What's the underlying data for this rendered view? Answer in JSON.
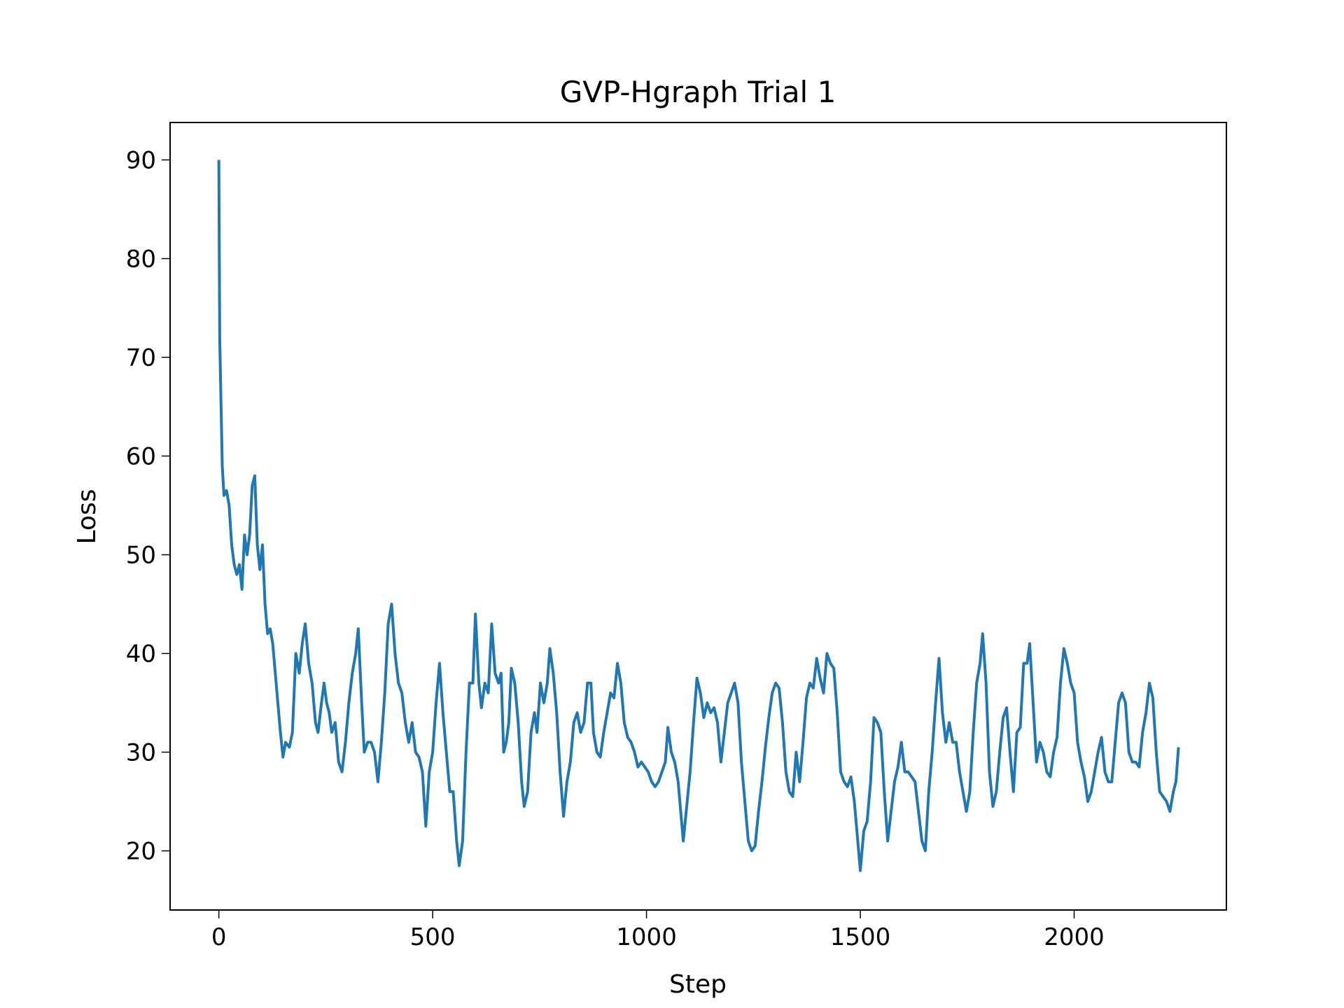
{
  "chart_data": {
    "type": "line",
    "title": "GVP-Hgraph Trial 1",
    "xlabel": "Step",
    "ylabel": "Loss",
    "color": "#1f77b4",
    "xlim": [
      -114,
      2356
    ],
    "ylim": [
      14.01,
      93.79
    ],
    "xticks": [
      0,
      500,
      1000,
      1500,
      2000
    ],
    "yticks": [
      20,
      30,
      40,
      50,
      60,
      70,
      80,
      90
    ],
    "x": [
      0,
      2,
      8,
      12,
      18,
      24,
      30,
      36,
      42,
      48,
      54,
      60,
      66,
      72,
      78,
      84,
      90,
      96,
      102,
      108,
      114,
      120,
      126,
      132,
      138,
      144,
      150,
      156,
      165,
      172,
      180,
      188,
      195,
      202,
      210,
      218,
      226,
      232,
      240,
      246,
      252,
      258,
      264,
      272,
      280,
      288,
      296,
      304,
      312,
      320,
      326,
      334,
      340,
      348,
      356,
      364,
      372,
      380,
      388,
      396,
      404,
      412,
      420,
      428,
      436,
      444,
      452,
      460,
      468,
      476,
      484,
      492,
      500,
      508,
      516,
      524,
      532,
      540,
      548,
      556,
      562,
      570,
      578,
      586,
      594,
      600,
      608,
      614,
      622,
      630,
      638,
      646,
      654,
      660,
      666,
      672,
      678,
      684,
      692,
      700,
      708,
      714,
      722,
      730,
      738,
      744,
      752,
      760,
      768,
      774,
      782,
      790,
      798,
      806,
      814,
      822,
      830,
      838,
      846,
      854,
      862,
      870,
      876,
      884,
      892,
      900,
      908,
      916,
      924,
      932,
      940,
      948,
      956,
      964,
      972,
      980,
      988,
      996,
      1004,
      1012,
      1020,
      1028,
      1036,
      1044,
      1050,
      1058,
      1066,
      1074,
      1080,
      1086,
      1094,
      1102,
      1110,
      1118,
      1126,
      1134,
      1142,
      1150,
      1158,
      1166,
      1174,
      1182,
      1190,
      1198,
      1206,
      1214,
      1222,
      1230,
      1238,
      1246,
      1254,
      1262,
      1270,
      1278,
      1286,
      1294,
      1302,
      1310,
      1318,
      1326,
      1334,
      1342,
      1350,
      1358,
      1366,
      1374,
      1382,
      1390,
      1398,
      1406,
      1414,
      1422,
      1430,
      1438,
      1446,
      1454,
      1462,
      1470,
      1478,
      1486,
      1494,
      1500,
      1508,
      1516,
      1524,
      1532,
      1540,
      1548,
      1556,
      1564,
      1572,
      1580,
      1588,
      1596,
      1604,
      1612,
      1620,
      1628,
      1636,
      1644,
      1652,
      1660,
      1668,
      1676,
      1684,
      1692,
      1700,
      1708,
      1716,
      1724,
      1732,
      1740,
      1748,
      1756,
      1764,
      1772,
      1780,
      1786,
      1794,
      1802,
      1810,
      1818,
      1826,
      1834,
      1842,
      1850,
      1858,
      1866,
      1874,
      1882,
      1890,
      1896,
      1904,
      1912,
      1920,
      1928,
      1936,
      1944,
      1952,
      1960,
      1968,
      1976,
      1984,
      1992,
      2000,
      2008,
      2016,
      2024,
      2032,
      2040,
      2048,
      2056,
      2064,
      2072,
      2080,
      2088,
      2096,
      2104,
      2112,
      2120,
      2128,
      2136,
      2144,
      2152,
      2160,
      2168,
      2176,
      2184,
      2192,
      2200,
      2208,
      2216,
      2224,
      2232,
      2238,
      2244
    ],
    "values": [
      90,
      72,
      59,
      56,
      56.5,
      55,
      51,
      49,
      48,
      49,
      46.5,
      52,
      50,
      52,
      57,
      58,
      51,
      48.5,
      51,
      45,
      42,
      42.5,
      41,
      38,
      35,
      32,
      29.5,
      31,
      30.5,
      32,
      40,
      38,
      41,
      43,
      39,
      37,
      33,
      32,
      35,
      37,
      35,
      34,
      32,
      33,
      29,
      28,
      31,
      35,
      38,
      40,
      42.5,
      35,
      30,
      31,
      31,
      30,
      27,
      31,
      36,
      43,
      45,
      40,
      37,
      36,
      33,
      31,
      33,
      30,
      29.5,
      28,
      22.5,
      28,
      30,
      35,
      39,
      34,
      30,
      26,
      26,
      21,
      18.5,
      21,
      30,
      37,
      37,
      44,
      37,
      34.5,
      37,
      36,
      43,
      38,
      37,
      38,
      30,
      31,
      33,
      38.5,
      37,
      33,
      27,
      24.5,
      26,
      32,
      34,
      32,
      37,
      35,
      37,
      40.5,
      38,
      34,
      28,
      23.5,
      27,
      29,
      33,
      34,
      32,
      33,
      37,
      37,
      32,
      30,
      29.5,
      32,
      34,
      36,
      35.5,
      39,
      37,
      33,
      31.5,
      31,
      30,
      28.5,
      29,
      28.5,
      28,
      27,
      26.5,
      27,
      28,
      29,
      32.5,
      30,
      29,
      27,
      24,
      21,
      24.5,
      28,
      33,
      37.5,
      36,
      33.5,
      35,
      34,
      34.5,
      33,
      29,
      32,
      35,
      36,
      37,
      35,
      29,
      25,
      21,
      20,
      20.5,
      24,
      27,
      30.5,
      33.5,
      36,
      37,
      36.5,
      33,
      28,
      26,
      25.5,
      30,
      27,
      31,
      35.5,
      37,
      36.5,
      39.5,
      37.5,
      36,
      40,
      39,
      38.5,
      34,
      28,
      27,
      26.5,
      27.5,
      25,
      21,
      18,
      22,
      23,
      27,
      33.5,
      33,
      32,
      26,
      21,
      24,
      27,
      28.5,
      31,
      28,
      28,
      27.5,
      27,
      24,
      21,
      20,
      26,
      30,
      35,
      39.5,
      34,
      31,
      33,
      31,
      31,
      28,
      26,
      24,
      26,
      32,
      37,
      39,
      42,
      37,
      28,
      24.5,
      26,
      30,
      33.5,
      34.5,
      30,
      26,
      32,
      32.5,
      39,
      39,
      41,
      35,
      29,
      31,
      30,
      28,
      27.5,
      30,
      31.5,
      37,
      40.5,
      39,
      37,
      36,
      31,
      29,
      27.5,
      25,
      26,
      28,
      30,
      31.5,
      28,
      27,
      27,
      31,
      35,
      36,
      35,
      30,
      29,
      29,
      28.5,
      32,
      34,
      37,
      35.5,
      30,
      26,
      25.5,
      25,
      24,
      26,
      27,
      30.5
    ]
  }
}
